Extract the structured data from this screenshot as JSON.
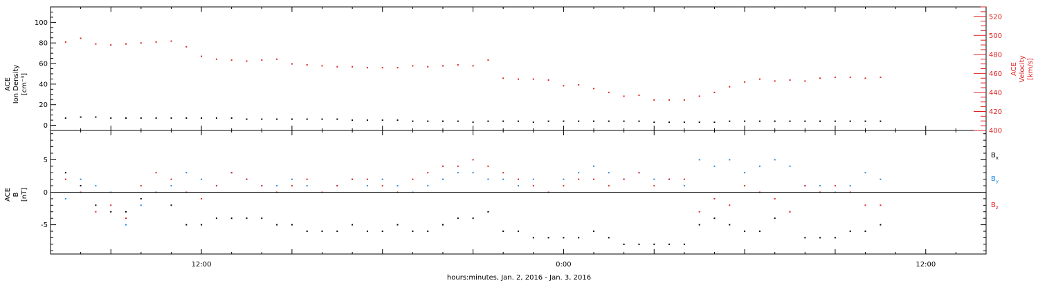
{
  "chart_data": [
    {
      "type": "scatter",
      "title": "",
      "ylabel_lines": [
        "ACE",
        "Ion Density",
        "[cm⁻³]"
      ],
      "ylabel_right_lines": [
        "ACE",
        "Velocity",
        "[km/s]"
      ],
      "ylim": [
        -5,
        115
      ],
      "yticks": [
        0,
        20,
        40,
        60,
        80,
        100
      ],
      "y2lim": [
        400,
        530
      ],
      "y2ticks": [
        400,
        420,
        440,
        460,
        480,
        500,
        520
      ],
      "y2_color": "#e02020",
      "grid": false,
      "series": [
        {
          "key": "density",
          "color": "#000000",
          "axis": "left",
          "x": [
            7.5,
            8.0,
            8.5,
            9.0,
            9.5,
            10.0,
            10.5,
            11.0,
            11.5,
            12.0,
            12.5,
            13.0,
            13.5,
            14.0,
            14.5,
            15.0,
            15.5,
            16.0,
            16.5,
            17.0,
            17.5,
            18.0,
            18.5,
            19.0,
            19.5,
            20.0,
            20.5,
            21.0,
            21.5,
            22.0,
            22.5,
            23.0,
            23.5,
            24.0,
            24.5,
            25.0,
            25.5,
            26.0,
            26.5,
            27.0,
            27.5,
            28.0,
            28.5,
            29.0,
            29.5,
            30.0,
            30.5,
            31.0,
            31.5,
            32.0,
            32.5,
            33.0,
            33.5,
            34.0,
            34.5
          ],
          "y": [
            7,
            8,
            8,
            7,
            7,
            7,
            7,
            7,
            7,
            7,
            7,
            7,
            6,
            6,
            6,
            6,
            6,
            6,
            6,
            5,
            5,
            5,
            5,
            4,
            4,
            4,
            4,
            3,
            4,
            4,
            4,
            3,
            4,
            4,
            4,
            4,
            4,
            4,
            4,
            3,
            3,
            3,
            3,
            3,
            4,
            4,
            4,
            4,
            4,
            4,
            4,
            4,
            4,
            4,
            4
          ]
        },
        {
          "key": "velocity",
          "color": "#e02020",
          "axis": "right",
          "x": [
            7.5,
            8.0,
            8.5,
            9.0,
            9.5,
            10.0,
            10.5,
            11.0,
            11.5,
            12.0,
            12.5,
            13.0,
            13.5,
            14.0,
            14.5,
            15.0,
            15.5,
            16.0,
            16.5,
            17.0,
            17.5,
            18.0,
            18.5,
            19.0,
            19.5,
            20.0,
            20.5,
            21.0,
            21.5,
            22.0,
            22.5,
            23.0,
            23.5,
            24.0,
            24.5,
            25.0,
            25.5,
            26.0,
            26.5,
            27.0,
            27.5,
            28.0,
            28.5,
            29.0,
            29.5,
            30.0,
            30.5,
            31.0,
            31.5,
            32.0,
            32.5,
            33.0,
            33.5,
            34.0,
            34.5
          ],
          "y": [
            493,
            497,
            491,
            490,
            491,
            492,
            493,
            494,
            488,
            478,
            475,
            474,
            473,
            474,
            475,
            470,
            469,
            468,
            467,
            467,
            466,
            466,
            466,
            468,
            467,
            468,
            469,
            468,
            474,
            455,
            454,
            454,
            453,
            447,
            448,
            444,
            440,
            436,
            437,
            432,
            432,
            432,
            436,
            440,
            446,
            451,
            454,
            452,
            453,
            452,
            455,
            456,
            456,
            455,
            456
          ]
        }
      ]
    },
    {
      "type": "scatter",
      "title": "",
      "ylabel_lines": [
        "ACE",
        "B",
        "[nT]"
      ],
      "ylim": [
        -9.5,
        9.5
      ],
      "yticks": [
        -5,
        0,
        5
      ],
      "zero_line": true,
      "grid": false,
      "legend_position": "right",
      "series": [
        {
          "name": "Bx",
          "name_main": "B",
          "name_sub": "x",
          "color": "#000000",
          "x": [
            7.5,
            8.0,
            8.5,
            9.0,
            9.5,
            10.0,
            10.5,
            11.0,
            11.5,
            12.0,
            12.5,
            13.0,
            13.5,
            14.0,
            14.5,
            15.0,
            15.5,
            16.0,
            16.5,
            17.0,
            17.5,
            18.0,
            18.5,
            19.0,
            19.5,
            20.0,
            20.5,
            21.0,
            21.5,
            22.0,
            22.5,
            23.0,
            23.5,
            24.0,
            24.5,
            25.0,
            25.5,
            26.0,
            26.5,
            27.0,
            27.5,
            28.0,
            28.5,
            29.0,
            29.5,
            30.0,
            30.5,
            31.0,
            31.5,
            32.0,
            32.5,
            33.0,
            33.5,
            34.0,
            34.5
          ],
          "y": [
            3,
            1,
            -2,
            -3,
            -3,
            -1,
            0,
            -2,
            -5,
            -5,
            -4,
            -4,
            -4,
            -4,
            -5,
            -5,
            -6,
            -6,
            -6,
            -5,
            -6,
            -6,
            -5,
            -6,
            -6,
            -5,
            -4,
            -4,
            -3,
            -6,
            -6,
            -7,
            -7,
            -7,
            -7,
            -6,
            -7,
            -8,
            -8,
            -8,
            -8,
            -8,
            -5,
            -4,
            -5,
            -6,
            -6,
            -4,
            -3,
            -7,
            -7,
            -7,
            -6,
            -6,
            -5
          ]
        },
        {
          "name": "By",
          "name_main": "B",
          "name_sub": "y",
          "color": "#1e88e5",
          "x": [
            7.5,
            8.0,
            8.5,
            9.0,
            9.5,
            10.0,
            10.5,
            11.0,
            11.5,
            12.0,
            12.5,
            13.0,
            13.5,
            14.0,
            14.5,
            15.0,
            15.5,
            16.0,
            16.5,
            17.0,
            17.5,
            18.0,
            18.5,
            19.0,
            19.5,
            20.0,
            20.5,
            21.0,
            21.5,
            22.0,
            22.5,
            23.0,
            23.5,
            24.0,
            24.5,
            25.0,
            25.5,
            26.0,
            26.5,
            27.0,
            27.5,
            28.0,
            28.5,
            29.0,
            29.5,
            30.0,
            30.5,
            31.0,
            31.5,
            32.0,
            32.5,
            33.0,
            33.5,
            34.0,
            34.5
          ],
          "y": [
            -1,
            2,
            1,
            0,
            -5,
            -2,
            0,
            1,
            3,
            2,
            1,
            3,
            2,
            1,
            1,
            2,
            1,
            0,
            1,
            2,
            1,
            2,
            1,
            0,
            1,
            2,
            3,
            3,
            2,
            2,
            1,
            2,
            0,
            2,
            3,
            4,
            3,
            2,
            3,
            2,
            2,
            1,
            5,
            4,
            5,
            3,
            4,
            5,
            4,
            1,
            1,
            0,
            1,
            3,
            2
          ]
        },
        {
          "name": "Bz",
          "name_main": "B",
          "name_sub": "z",
          "color": "#e02020",
          "x": [
            7.5,
            8.0,
            8.5,
            9.0,
            9.5,
            10.0,
            10.5,
            11.0,
            11.5,
            12.0,
            12.5,
            13.0,
            13.5,
            14.0,
            14.5,
            15.0,
            15.5,
            16.0,
            16.5,
            17.0,
            17.5,
            18.0,
            18.5,
            19.0,
            19.5,
            20.0,
            20.5,
            21.0,
            21.5,
            22.0,
            22.5,
            23.0,
            23.5,
            24.0,
            24.5,
            25.0,
            25.5,
            26.0,
            26.5,
            27.0,
            27.5,
            28.0,
            28.5,
            29.0,
            29.5,
            30.0,
            30.5,
            31.0,
            31.5,
            32.0,
            32.5,
            33.0,
            33.5,
            34.0,
            34.5
          ],
          "y": [
            2,
            0,
            -3,
            -2,
            -4,
            1,
            3,
            2,
            0,
            -1,
            1,
            3,
            2,
            1,
            0,
            1,
            2,
            0,
            1,
            2,
            2,
            1,
            0,
            2,
            3,
            4,
            4,
            5,
            4,
            3,
            2,
            1,
            0,
            1,
            2,
            2,
            1,
            2,
            3,
            1,
            2,
            2,
            -3,
            -1,
            -2,
            1,
            0,
            -1,
            -3,
            1,
            0,
            1,
            0,
            -2,
            -2
          ]
        }
      ]
    }
  ],
  "x_axis": {
    "label": "hours:minutes, Jan.  2, 2016 - Jan.  3, 2016",
    "range_hours": [
      7,
      38
    ],
    "tick_labels": [
      {
        "hour": 12,
        "label": "12:00"
      },
      {
        "hour": 24,
        "label": "0:00"
      },
      {
        "hour": 36,
        "label": "12:00"
      }
    ]
  }
}
